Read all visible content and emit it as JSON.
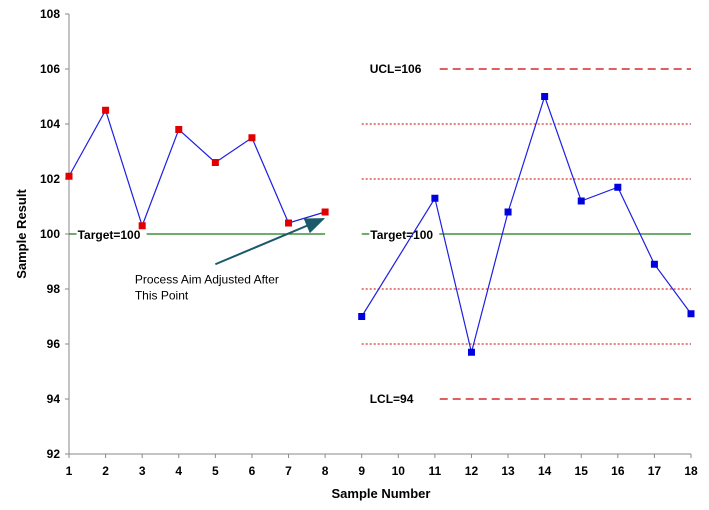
{
  "chart_data": {
    "type": "line",
    "xlabel": "Sample Number",
    "ylabel": "Sample Result",
    "xlim": [
      1,
      18
    ],
    "ylim": [
      92,
      108
    ],
    "x_ticks": [
      1,
      2,
      3,
      4,
      5,
      6,
      7,
      8,
      9,
      10,
      11,
      12,
      13,
      14,
      15,
      16,
      17,
      18
    ],
    "y_ticks": [
      92,
      94,
      96,
      98,
      100,
      102,
      104,
      106,
      108
    ],
    "series": [
      {
        "color": "#e00000",
        "line_color": "#1f1fe0",
        "x": [
          1,
          2,
          3,
          4,
          5,
          6,
          7,
          8
        ],
        "y": [
          102.1,
          104.5,
          100.3,
          103.8,
          102.6,
          103.5,
          100.4,
          100.8
        ]
      },
      {
        "color": "#0000e0",
        "line_color": "#1f1fe0",
        "x": [
          9,
          10,
          11,
          12,
          13,
          14,
          15,
          16,
          17,
          18
        ],
        "y": [
          97.0,
          null,
          101.3,
          95.7,
          100.8,
          105.0,
          101.2,
          101.7,
          98.9,
          97.1
        ]
      }
    ],
    "target_lines": [
      {
        "label": "Target=100",
        "value": 100,
        "x_from": 1,
        "x_to": 8,
        "label_x": 2,
        "color": "#1a7a1a"
      },
      {
        "label": "Target=100",
        "value": 100,
        "x_from": 9,
        "x_to": 18,
        "label_x": 10,
        "color": "#1a7a1a"
      }
    ],
    "control_limits": [
      {
        "label": "UCL=106",
        "value": 106,
        "x_from": 9,
        "x_to": 18,
        "color": "#cc0000"
      },
      {
        "label": "LCL=94",
        "value": 94,
        "x_from": 9,
        "x_to": 18,
        "color": "#cc0000"
      }
    ],
    "zone_lines": {
      "values": [
        104,
        102,
        98,
        96
      ],
      "x_from": 9,
      "x_to": 18,
      "color": "#cc0000"
    },
    "annotations": [
      {
        "text_lines": [
          "Process Aim Adjusted After",
          "This Point"
        ],
        "text_x": 2.8,
        "text_y": 98.2,
        "arrow_from": [
          5.0,
          98.9
        ],
        "arrow_to": [
          7.95,
          100.55
        ],
        "color": "#1a5a6a"
      }
    ],
    "grid": false,
    "legend": "none"
  }
}
